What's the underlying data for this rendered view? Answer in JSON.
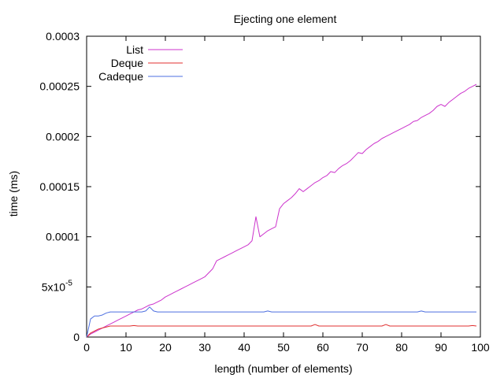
{
  "chart_data": {
    "type": "line",
    "title": "Ejecting one element",
    "xlabel": "length (number of elements)",
    "ylabel": "time (ms)",
    "xlim": [
      0,
      100
    ],
    "ylim": [
      0,
      0.0003
    ],
    "grid": false,
    "legend_position": "top-left",
    "x_ticks": [
      0,
      10,
      20,
      30,
      40,
      50,
      60,
      70,
      80,
      90,
      100
    ],
    "x_tick_labels": [
      "0",
      "10",
      "20",
      "30",
      "40",
      "50",
      "60",
      "70",
      "80",
      "90",
      "100"
    ],
    "y_ticks": [
      0,
      5e-05,
      0.0001,
      0.00015,
      0.0002,
      0.00025,
      0.0003
    ],
    "y_tick_labels": [
      "0",
      "5x10",
      "0.0001",
      "0.00015",
      "0.0002",
      "0.00025",
      "0.0003"
    ],
    "y_tick_exponent": "-5",
    "x": [
      0,
      1,
      2,
      3,
      4,
      5,
      6,
      7,
      8,
      9,
      10,
      11,
      12,
      13,
      14,
      15,
      16,
      17,
      18,
      19,
      20,
      21,
      22,
      23,
      24,
      25,
      26,
      27,
      28,
      29,
      30,
      31,
      32,
      33,
      34,
      35,
      36,
      37,
      38,
      39,
      40,
      41,
      42,
      43,
      44,
      45,
      46,
      47,
      48,
      49,
      50,
      51,
      52,
      53,
      54,
      55,
      56,
      57,
      58,
      59,
      60,
      61,
      62,
      63,
      64,
      65,
      66,
      67,
      68,
      69,
      70,
      71,
      72,
      73,
      74,
      75,
      76,
      77,
      78,
      79,
      80,
      81,
      82,
      83,
      84,
      85,
      86,
      87,
      88,
      89,
      90,
      91,
      92,
      93,
      94,
      95,
      96,
      97,
      98,
      99
    ],
    "series": [
      {
        "name": "List",
        "color": "#cc33cc",
        "values": [
          0.0,
          3e-06,
          5e-06,
          7e-06,
          9e-06,
          1.1e-05,
          1.3e-05,
          1.5e-05,
          1.7e-05,
          1.9e-05,
          2.1e-05,
          2.3e-05,
          2.5e-05,
          2.7e-05,
          2.8e-05,
          3e-05,
          3.2e-05,
          3.3e-05,
          3.5e-05,
          3.7e-05,
          4e-05,
          4.2e-05,
          4.4e-05,
          4.6e-05,
          4.8e-05,
          5e-05,
          5.2e-05,
          5.4e-05,
          5.6e-05,
          5.8e-05,
          6e-05,
          6.4e-05,
          6.8e-05,
          7.6e-05,
          7.8e-05,
          8e-05,
          8.2e-05,
          8.4e-05,
          8.6e-05,
          8.8e-05,
          9e-05,
          9.2e-05,
          9.6e-05,
          0.00012,
          0.0001,
          0.000103,
          0.000106,
          0.000108,
          0.00011,
          0.000128,
          0.000133,
          0.000136,
          0.000139,
          0.000143,
          0.000148,
          0.000145,
          0.000148,
          0.000151,
          0.000154,
          0.000156,
          0.000159,
          0.000161,
          0.000165,
          0.000164,
          0.000168,
          0.000171,
          0.000173,
          0.000176,
          0.00018,
          0.000184,
          0.000183,
          0.000187,
          0.00019,
          0.000193,
          0.000195,
          0.000198,
          0.0002,
          0.000202,
          0.000204,
          0.000206,
          0.000208,
          0.00021,
          0.000212,
          0.000215,
          0.000216,
          0.000219,
          0.000221,
          0.000223,
          0.000226,
          0.00023,
          0.000232,
          0.00023,
          0.000234,
          0.000237,
          0.00024,
          0.000243,
          0.000245,
          0.000248,
          0.00025,
          0.000252
        ]
      },
      {
        "name": "Deque",
        "color": "#e03030",
        "values": [
          0.0,
          4e-06,
          6e-06,
          8e-06,
          9e-06,
          1e-05,
          1.1e-05,
          1.1e-05,
          1.1e-05,
          1.1e-05,
          1.1e-05,
          1.1e-05,
          1.15e-05,
          1.1e-05,
          1.1e-05,
          1.1e-05,
          1.1e-05,
          1.1e-05,
          1.1e-05,
          1.1e-05,
          1.1e-05,
          1.1e-05,
          1.1e-05,
          1.1e-05,
          1.1e-05,
          1.1e-05,
          1.1e-05,
          1.1e-05,
          1.1e-05,
          1.1e-05,
          1.1e-05,
          1.1e-05,
          1.1e-05,
          1.1e-05,
          1.1e-05,
          1.1e-05,
          1.1e-05,
          1.1e-05,
          1.1e-05,
          1.1e-05,
          1.1e-05,
          1.1e-05,
          1.1e-05,
          1.1e-05,
          1.1e-05,
          1.1e-05,
          1.1e-05,
          1.1e-05,
          1.1e-05,
          1.1e-05,
          1.1e-05,
          1.1e-05,
          1.1e-05,
          1.1e-05,
          1.1e-05,
          1.1e-05,
          1.1e-05,
          1.1e-05,
          1.25e-05,
          1.1e-05,
          1.1e-05,
          1.1e-05,
          1.1e-05,
          1.1e-05,
          1.1e-05,
          1.1e-05,
          1.1e-05,
          1.1e-05,
          1.1e-05,
          1.1e-05,
          1.1e-05,
          1.1e-05,
          1.1e-05,
          1.1e-05,
          1.1e-05,
          1.1e-05,
          1.25e-05,
          1.1e-05,
          1.1e-05,
          1.1e-05,
          1.1e-05,
          1.1e-05,
          1.1e-05,
          1.1e-05,
          1.1e-05,
          1.1e-05,
          1.1e-05,
          1.1e-05,
          1.1e-05,
          1.1e-05,
          1.1e-05,
          1.1e-05,
          1.1e-05,
          1.1e-05,
          1.1e-05,
          1.1e-05,
          1.1e-05,
          1.1e-05,
          1.15e-05,
          1.1e-05
        ]
      },
      {
        "name": "Cadeque",
        "color": "#4d6fe0",
        "values": [
          0.0,
          1.8e-05,
          2.1e-05,
          2.1e-05,
          2.2e-05,
          2.4e-05,
          2.5e-05,
          2.5e-05,
          2.5e-05,
          2.5e-05,
          2.5e-05,
          2.5e-05,
          2.5e-05,
          2.5e-05,
          2.5e-05,
          2.6e-05,
          3e-05,
          2.6e-05,
          2.5e-05,
          2.5e-05,
          2.5e-05,
          2.5e-05,
          2.5e-05,
          2.5e-05,
          2.5e-05,
          2.5e-05,
          2.5e-05,
          2.5e-05,
          2.5e-05,
          2.5e-05,
          2.5e-05,
          2.5e-05,
          2.5e-05,
          2.5e-05,
          2.5e-05,
          2.5e-05,
          2.5e-05,
          2.5e-05,
          2.5e-05,
          2.5e-05,
          2.5e-05,
          2.5e-05,
          2.5e-05,
          2.5e-05,
          2.5e-05,
          2.5e-05,
          2.6e-05,
          2.5e-05,
          2.5e-05,
          2.5e-05,
          2.5e-05,
          2.5e-05,
          2.5e-05,
          2.5e-05,
          2.5e-05,
          2.5e-05,
          2.5e-05,
          2.5e-05,
          2.5e-05,
          2.5e-05,
          2.5e-05,
          2.5e-05,
          2.5e-05,
          2.5e-05,
          2.5e-05,
          2.5e-05,
          2.5e-05,
          2.5e-05,
          2.5e-05,
          2.5e-05,
          2.5e-05,
          2.5e-05,
          2.5e-05,
          2.5e-05,
          2.5e-05,
          2.5e-05,
          2.5e-05,
          2.5e-05,
          2.5e-05,
          2.5e-05,
          2.5e-05,
          2.5e-05,
          2.5e-05,
          2.5e-05,
          2.5e-05,
          2.6e-05,
          2.5e-05,
          2.5e-05,
          2.5e-05,
          2.5e-05,
          2.5e-05,
          2.5e-05,
          2.5e-05,
          2.5e-05,
          2.5e-05,
          2.5e-05,
          2.5e-05,
          2.5e-05,
          2.5e-05,
          2.5e-05
        ]
      }
    ]
  }
}
